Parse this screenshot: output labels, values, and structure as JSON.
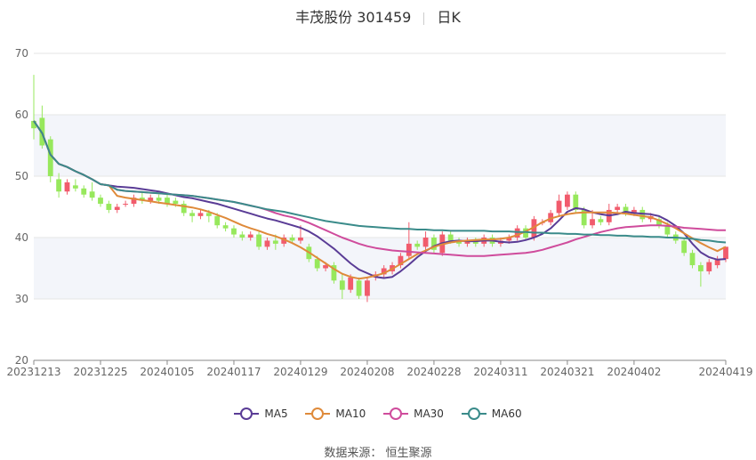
{
  "header": {
    "title": "丰茂股份 301459",
    "period": "日K"
  },
  "source": "数据来源： 恒生聚源",
  "colors": {
    "up": "#f15b6c",
    "down": "#97e85c",
    "ma5": "#5a3c96",
    "ma10": "#df8a3a",
    "ma30": "#cf4c9c",
    "ma60": "#3a8b8a",
    "band": "#f3f5fa",
    "grid": "#e6e6e6"
  },
  "chart_data": {
    "type": "candlestick",
    "title": "丰茂股份 301459",
    "ylim": [
      20,
      70
    ],
    "yticks": [
      20,
      30,
      40,
      50,
      60,
      70
    ],
    "xtick_labels": [
      "20231213",
      "20231225",
      "20240105",
      "20240117",
      "20240129",
      "20240208",
      "20240228",
      "20240311",
      "20240321",
      "20240402",
      "20240419"
    ],
    "xtick_index": [
      0,
      8,
      16,
      24,
      32,
      40,
      48,
      56,
      64,
      72,
      83
    ],
    "candles": [
      [
        59.0,
        57.8,
        66.5,
        56.0
      ],
      [
        59.5,
        55.0,
        61.5,
        54.5
      ],
      [
        56.0,
        50.0,
        56.5,
        49.0
      ],
      [
        49.5,
        47.5,
        50.5,
        46.5
      ],
      [
        47.5,
        49.0,
        49.5,
        47.0
      ],
      [
        48.5,
        48.0,
        49.5,
        47.5
      ],
      [
        48.0,
        47.0,
        48.5,
        46.5
      ],
      [
        47.5,
        46.5,
        49.0,
        46.0
      ],
      [
        46.5,
        45.5,
        47.0,
        45.0
      ],
      [
        45.5,
        44.5,
        46.0,
        44.0
      ],
      [
        44.5,
        45.0,
        45.5,
        44.0
      ],
      [
        45.5,
        45.5,
        46.0,
        45.0
      ],
      [
        45.5,
        46.5,
        47.0,
        45.0
      ],
      [
        46.5,
        46.0,
        47.5,
        45.5
      ],
      [
        46.0,
        46.5,
        47.0,
        45.5
      ],
      [
        46.5,
        46.0,
        47.0,
        45.5
      ],
      [
        46.5,
        45.5,
        47.0,
        45.0
      ],
      [
        46.0,
        45.5,
        46.5,
        45.0
      ],
      [
        45.5,
        44.0,
        46.0,
        43.5
      ],
      [
        44.0,
        43.5,
        44.5,
        42.5
      ],
      [
        43.5,
        44.0,
        44.5,
        43.0
      ],
      [
        44.0,
        43.5,
        44.5,
        42.5
      ],
      [
        43.5,
        42.0,
        44.0,
        41.5
      ],
      [
        42.0,
        41.5,
        42.5,
        41.0
      ],
      [
        41.5,
        40.5,
        42.0,
        40.0
      ],
      [
        40.5,
        40.0,
        41.0,
        39.5
      ],
      [
        40.0,
        40.5,
        41.0,
        39.5
      ],
      [
        40.5,
        38.5,
        41.0,
        38.0
      ],
      [
        38.5,
        39.5,
        40.0,
        38.0
      ],
      [
        39.5,
        39.0,
        40.5,
        38.0
      ],
      [
        39.0,
        40.0,
        40.5,
        38.5
      ],
      [
        40.0,
        39.5,
        40.5,
        39.0
      ],
      [
        39.5,
        40.0,
        42.0,
        39.0
      ],
      [
        38.5,
        36.5,
        39.0,
        36.0
      ],
      [
        36.5,
        35.0,
        37.0,
        34.5
      ],
      [
        35.0,
        35.5,
        36.0,
        34.5
      ],
      [
        35.5,
        33.0,
        36.0,
        32.5
      ],
      [
        33.0,
        31.5,
        34.0,
        30.0
      ],
      [
        31.5,
        33.5,
        34.0,
        31.0
      ],
      [
        33.0,
        30.5,
        33.5,
        30.0
      ],
      [
        30.5,
        33.0,
        33.5,
        29.5
      ],
      [
        33.5,
        34.0,
        34.5,
        33.0
      ],
      [
        34.0,
        35.0,
        35.5,
        33.5
      ],
      [
        34.5,
        35.5,
        36.0,
        34.0
      ],
      [
        35.5,
        37.0,
        37.5,
        35.0
      ],
      [
        37.0,
        39.0,
        42.5,
        36.5
      ],
      [
        39.0,
        38.5,
        39.5,
        38.0
      ],
      [
        38.5,
        40.0,
        41.0,
        38.0
      ],
      [
        40.0,
        38.0,
        40.5,
        37.5
      ],
      [
        37.5,
        40.5,
        41.0,
        37.0
      ],
      [
        40.5,
        39.5,
        41.0,
        39.0
      ],
      [
        39.5,
        39.0,
        40.0,
        38.5
      ],
      [
        39.0,
        39.5,
        40.0,
        38.5
      ],
      [
        39.5,
        39.0,
        40.0,
        38.5
      ],
      [
        39.0,
        40.0,
        40.5,
        38.5
      ],
      [
        40.0,
        39.0,
        40.5,
        38.5
      ],
      [
        39.0,
        39.5,
        40.0,
        38.5
      ],
      [
        39.5,
        40.0,
        40.5,
        39.0
      ],
      [
        40.0,
        41.5,
        42.0,
        39.5
      ],
      [
        41.5,
        40.0,
        42.0,
        39.5
      ],
      [
        40.0,
        43.0,
        43.5,
        39.5
      ],
      [
        42.5,
        42.5,
        43.0,
        42.0
      ],
      [
        42.5,
        44.0,
        44.5,
        42.0
      ],
      [
        44.0,
        46.0,
        47.0,
        43.5
      ],
      [
        45.0,
        47.0,
        47.5,
        44.5
      ],
      [
        47.0,
        44.5,
        47.5,
        44.0
      ],
      [
        44.5,
        42.0,
        45.0,
        41.5
      ],
      [
        42.0,
        43.0,
        44.5,
        41.5
      ],
      [
        43.0,
        42.5,
        43.5,
        42.0
      ],
      [
        42.5,
        44.5,
        45.5,
        42.0
      ],
      [
        44.5,
        45.0,
        45.5,
        44.0
      ],
      [
        45.0,
        44.0,
        45.5,
        43.5
      ],
      [
        44.0,
        44.5,
        45.0,
        43.5
      ],
      [
        44.5,
        43.0,
        45.0,
        42.5
      ],
      [
        43.0,
        43.5,
        44.0,
        42.5
      ],
      [
        43.0,
        42.0,
        43.5,
        41.5
      ],
      [
        42.0,
        40.5,
        42.5,
        40.0
      ],
      [
        40.5,
        39.5,
        41.0,
        39.0
      ],
      [
        39.5,
        37.5,
        40.0,
        37.0
      ],
      [
        37.5,
        35.5,
        38.0,
        35.0
      ],
      [
        35.5,
        34.5,
        36.0,
        32.0
      ],
      [
        34.5,
        36.0,
        36.5,
        34.0
      ],
      [
        35.5,
        36.5,
        37.0,
        35.0
      ],
      [
        36.5,
        38.5,
        38.5,
        36.0
      ]
    ],
    "series": [
      {
        "name": "MA5",
        "values": [
          59,
          57,
          53.5,
          52,
          51.5,
          50.8,
          50.2,
          49.5,
          48.7,
          48.5,
          48.3,
          48.2,
          48.1,
          47.9,
          47.7,
          47.5,
          47.2,
          46.9,
          46.6,
          46.4,
          46.1,
          45.8,
          45.5,
          45.1,
          44.7,
          44.3,
          43.9,
          43.5,
          43.1,
          42.8,
          42.4,
          42,
          41.6,
          41,
          40.2,
          39.2,
          38.2,
          37,
          35.8,
          34.8,
          34.2,
          33.6,
          33.4,
          33.6,
          34.5,
          35.6,
          36.8,
          37.8,
          38.6,
          39.1,
          39.4,
          39.5,
          39.4,
          39.4,
          39.5,
          39.5,
          39.3,
          39.2,
          39.3,
          39.6,
          40,
          40.6,
          41.5,
          42.8,
          44.2,
          44.8,
          44.6,
          44.1,
          43.8,
          43.6,
          43.8,
          44.2,
          44,
          43.9,
          43.8,
          43.5,
          42.8,
          41.9,
          40.7,
          39,
          37.6,
          36.8,
          36.4,
          36.5
        ]
      },
      {
        "name": "MA10",
        "values": [
          59,
          57,
          53.5,
          52,
          51.5,
          50.8,
          50.2,
          49.5,
          48.7,
          48.5,
          46.8,
          46.5,
          46.3,
          46.1,
          45.9,
          45.7,
          45.5,
          45.3,
          45.1,
          44.9,
          44.6,
          44.2,
          43.7,
          43.2,
          42.6,
          42,
          41.5,
          41.1,
          40.6,
          40.2,
          39.7,
          39.1,
          38.4,
          37.6,
          36.7,
          35.8,
          34.9,
          34.1,
          33.6,
          33.3,
          33.5,
          33.8,
          34.2,
          34.9,
          35.7,
          36.5,
          37.3,
          37.9,
          38.5,
          38.9,
          39.2,
          39.4,
          39.5,
          39.6,
          39.7,
          39.7,
          39.8,
          40,
          40.4,
          41,
          41.7,
          42.5,
          43.1,
          43.5,
          43.8,
          44,
          44.1,
          44.1,
          44.1,
          44.1,
          44,
          43.9,
          43.7,
          43.5,
          43.3,
          42.8,
          42.2,
          41.5,
          40.7,
          39.9,
          39.1,
          38.4,
          37.8,
          38.5
        ]
      },
      {
        "name": "MA30",
        "values": [
          59,
          57,
          53.5,
          52,
          51.5,
          50.8,
          50.2,
          49.5,
          48.7,
          48.5,
          47.8,
          47.6,
          47.5,
          47.4,
          47.3,
          47.2,
          47.1,
          47,
          46.9,
          46.8,
          46.6,
          46.4,
          46.2,
          46,
          45.8,
          45.5,
          45.2,
          44.9,
          44.5,
          44,
          43.6,
          43.3,
          42.9,
          42.4,
          41.8,
          41.2,
          40.6,
          40,
          39.5,
          39,
          38.6,
          38.3,
          38.1,
          37.9,
          37.8,
          37.7,
          37.6,
          37.5,
          37.4,
          37.3,
          37.2,
          37.1,
          37,
          37,
          37,
          37.1,
          37.2,
          37.3,
          37.4,
          37.5,
          37.7,
          38,
          38.4,
          38.8,
          39.2,
          39.7,
          40.1,
          40.5,
          40.9,
          41.2,
          41.5,
          41.7,
          41.8,
          41.9,
          42,
          42,
          41.9,
          41.8,
          41.6,
          41.5,
          41.4,
          41.3,
          41.2,
          41.2
        ]
      },
      {
        "name": "MA60",
        "values": [
          59,
          57,
          53.5,
          52,
          51.5,
          50.8,
          50.2,
          49.5,
          48.7,
          48.5,
          47.8,
          47.6,
          47.5,
          47.4,
          47.3,
          47.2,
          47.1,
          47,
          46.9,
          46.8,
          46.6,
          46.4,
          46.2,
          46,
          45.8,
          45.5,
          45.2,
          44.9,
          44.6,
          44.4,
          44.2,
          43.9,
          43.6,
          43.3,
          43,
          42.7,
          42.5,
          42.3,
          42.1,
          41.9,
          41.8,
          41.7,
          41.6,
          41.5,
          41.4,
          41.4,
          41.3,
          41.3,
          41.2,
          41.2,
          41.1,
          41.1,
          41.1,
          41.1,
          41.1,
          41,
          41,
          41,
          40.9,
          40.9,
          40.8,
          40.8,
          40.7,
          40.7,
          40.6,
          40.6,
          40.5,
          40.5,
          40.4,
          40.4,
          40.3,
          40.3,
          40.2,
          40.2,
          40.1,
          40.1,
          40,
          40,
          39.9,
          39.8,
          39.6,
          39.5,
          39.3,
          39.2
        ]
      }
    ]
  }
}
